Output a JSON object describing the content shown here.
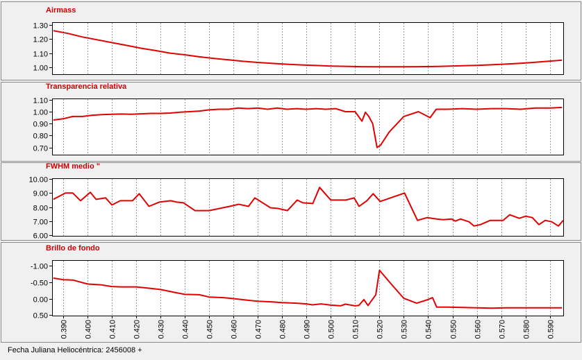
{
  "footer": {
    "xaxis_label": "Fecha Juliana Heliocéntrica: 2456008 +"
  },
  "colors": {
    "series": "#e00000",
    "title": "#cc0000"
  },
  "chart_data": [
    {
      "type": "line",
      "title": "Airmass",
      "xlim": [
        0.3855,
        0.5955
      ],
      "ylim": [
        0.95,
        1.32
      ],
      "y_inverted": false,
      "yticks": [
        "1.30",
        "1.20",
        "1.10",
        "1.00"
      ],
      "ytick_values": [
        1.3,
        1.2,
        1.1,
        1.0
      ],
      "series": [
        {
          "x": [
            0.386,
            0.392,
            0.398,
            0.404,
            0.41,
            0.416,
            0.422,
            0.428,
            0.434,
            0.44,
            0.446,
            0.452,
            0.458,
            0.464,
            0.47,
            0.476,
            0.482,
            0.488,
            0.494,
            0.5,
            0.506,
            0.512,
            0.518,
            0.524,
            0.53,
            0.536,
            0.542,
            0.548,
            0.554,
            0.56,
            0.566,
            0.572,
            0.578,
            0.584,
            0.59,
            0.595
          ],
          "y": [
            1.26,
            1.24,
            1.215,
            1.195,
            1.175,
            1.155,
            1.135,
            1.118,
            1.1,
            1.088,
            1.074,
            1.062,
            1.052,
            1.042,
            1.034,
            1.027,
            1.021,
            1.016,
            1.012,
            1.008,
            1.006,
            1.004,
            1.003,
            1.003,
            1.003,
            1.004,
            1.005,
            1.007,
            1.01,
            1.013,
            1.017,
            1.022,
            1.028,
            1.035,
            1.043,
            1.05
          ]
        }
      ]
    },
    {
      "type": "line",
      "title": "Transparencia relativa",
      "xlim": [
        0.3855,
        0.5955
      ],
      "ylim": [
        0.64,
        1.11
      ],
      "y_inverted": false,
      "yticks": [
        "1.10",
        "1.00",
        "0.90",
        "0.80",
        "0.70"
      ],
      "ytick_values": [
        1.1,
        1.0,
        0.9,
        0.8,
        0.7
      ],
      "series": [
        {
          "x": [
            0.386,
            0.39,
            0.394,
            0.398,
            0.402,
            0.406,
            0.41,
            0.414,
            0.418,
            0.422,
            0.426,
            0.43,
            0.434,
            0.438,
            0.442,
            0.446,
            0.45,
            0.454,
            0.458,
            0.462,
            0.466,
            0.47,
            0.474,
            0.478,
            0.482,
            0.486,
            0.49,
            0.494,
            0.498,
            0.502,
            0.506,
            0.51,
            0.5128,
            0.5142,
            0.5156,
            0.5172,
            0.519,
            0.5205,
            0.524,
            0.53,
            0.536,
            0.5408,
            0.5433,
            0.548,
            0.554,
            0.56,
            0.566,
            0.572,
            0.578,
            0.584,
            0.59,
            0.595
          ],
          "y": [
            0.93,
            0.94,
            0.96,
            0.96,
            0.97,
            0.975,
            0.978,
            0.98,
            0.978,
            0.982,
            0.985,
            0.985,
            0.988,
            0.995,
            1.0,
            1.005,
            1.015,
            1.02,
            1.02,
            1.03,
            1.025,
            1.03,
            1.02,
            1.03,
            1.02,
            1.025,
            1.02,
            1.025,
            1.02,
            1.025,
            1.0,
            1.0,
            0.92,
            0.995,
            0.96,
            0.9,
            0.7,
            0.72,
            0.83,
            0.96,
            1.0,
            0.95,
            1.02,
            1.02,
            1.025,
            1.02,
            1.025,
            1.025,
            1.02,
            1.03,
            1.03,
            1.035
          ]
        }
      ]
    },
    {
      "type": "line",
      "title": "FWHM medio \"",
      "xlim": [
        0.3855,
        0.5955
      ],
      "ylim": [
        5.95,
        10.05
      ],
      "y_inverted": false,
      "yticks": [
        "10.00",
        "9.00",
        "8.00",
        "7.00",
        "6.00"
      ],
      "ytick_values": [
        10,
        9,
        8,
        7,
        6
      ],
      "series": [
        {
          "x": [
            0.386,
            0.391,
            0.394,
            0.3972,
            0.4012,
            0.4036,
            0.4075,
            0.4101,
            0.4135,
            0.4185,
            0.4213,
            0.4253,
            0.4295,
            0.4342,
            0.4368,
            0.4395,
            0.4442,
            0.45,
            0.4585,
            0.4622,
            0.4662,
            0.4688,
            0.4752,
            0.4783,
            0.4822,
            0.4862,
            0.4885,
            0.4926,
            0.4954,
            0.5,
            0.5062,
            0.5096,
            0.5116,
            0.5148,
            0.5174,
            0.5203,
            0.5303,
            0.5356,
            0.5396,
            0.5435,
            0.5461,
            0.5496,
            0.5512,
            0.5533,
            0.5568,
            0.5588,
            0.5615,
            0.5655,
            0.5708,
            0.5735,
            0.5774,
            0.5801,
            0.5828,
            0.5855,
            0.5881,
            0.5908,
            0.5935,
            0.5955
          ],
          "y": [
            8.55,
            9.0,
            9.0,
            8.45,
            9.05,
            8.55,
            8.65,
            8.15,
            8.45,
            8.45,
            8.95,
            8.05,
            8.35,
            8.45,
            8.35,
            8.3,
            7.75,
            7.75,
            8.05,
            8.2,
            8.05,
            8.65,
            7.95,
            7.9,
            7.75,
            8.5,
            8.3,
            8.25,
            9.4,
            8.5,
            8.5,
            8.65,
            8.05,
            8.45,
            8.95,
            8.4,
            9.0,
            7.05,
            7.25,
            7.15,
            7.1,
            7.15,
            7.0,
            7.15,
            6.95,
            6.65,
            6.75,
            7.05,
            7.05,
            7.45,
            7.2,
            7.35,
            7.25,
            6.75,
            7.05,
            6.95,
            6.65,
            7.05
          ]
        }
      ]
    },
    {
      "type": "line",
      "title": "Brillo de fondo",
      "xlim": [
        0.3855,
        0.5955
      ],
      "ylim": [
        -1.18,
        0.52
      ],
      "y_inverted": true,
      "yticks": [
        "-1.00",
        "-0.50",
        "0.00",
        "0.50"
      ],
      "ytick_values": [
        -1.0,
        -0.5,
        0.0,
        0.5
      ],
      "xticks": [
        "0.390",
        "0.400",
        "0.410",
        "0.420",
        "0.430",
        "0.440",
        "0.450",
        "0.460",
        "0.470",
        "0.480",
        "0.490",
        "0.500",
        "0.510",
        "0.520",
        "0.530",
        "0.540",
        "0.550",
        "0.560",
        "0.570",
        "0.580",
        "0.590"
      ],
      "xtick_values": [
        0.39,
        0.4,
        0.41,
        0.42,
        0.43,
        0.44,
        0.45,
        0.46,
        0.47,
        0.48,
        0.49,
        0.5,
        0.51,
        0.52,
        0.53,
        0.54,
        0.55,
        0.56,
        0.57,
        0.58,
        0.59
      ],
      "series": [
        {
          "x": [
            0.386,
            0.39,
            0.394,
            0.4,
            0.406,
            0.41,
            0.414,
            0.42,
            0.424,
            0.43,
            0.436,
            0.44,
            0.446,
            0.45,
            0.456,
            0.46,
            0.466,
            0.47,
            0.476,
            0.48,
            0.486,
            0.49,
            0.4925,
            0.496,
            0.5,
            0.504,
            0.506,
            0.51,
            0.5115,
            0.5136,
            0.5153,
            0.5185,
            0.52,
            0.5248,
            0.53,
            0.5353,
            0.5395,
            0.5418,
            0.5435,
            0.548,
            0.554,
            0.56,
            0.566,
            0.572,
            0.578,
            0.584,
            0.59,
            0.595
          ],
          "y": [
            -0.63,
            -0.58,
            -0.57,
            -0.45,
            -0.42,
            -0.37,
            -0.36,
            -0.36,
            -0.33,
            -0.28,
            -0.19,
            -0.13,
            -0.12,
            -0.05,
            -0.03,
            0.0,
            0.05,
            0.08,
            0.1,
            0.12,
            0.14,
            0.16,
            0.19,
            0.16,
            0.2,
            0.22,
            0.17,
            0.22,
            0.21,
            0.03,
            0.21,
            -0.12,
            -0.87,
            -0.45,
            -0.01,
            0.14,
            0.04,
            -0.03,
            0.26,
            0.26,
            0.27,
            0.28,
            0.29,
            0.28,
            0.28,
            0.28,
            0.28,
            0.28
          ]
        }
      ]
    }
  ]
}
